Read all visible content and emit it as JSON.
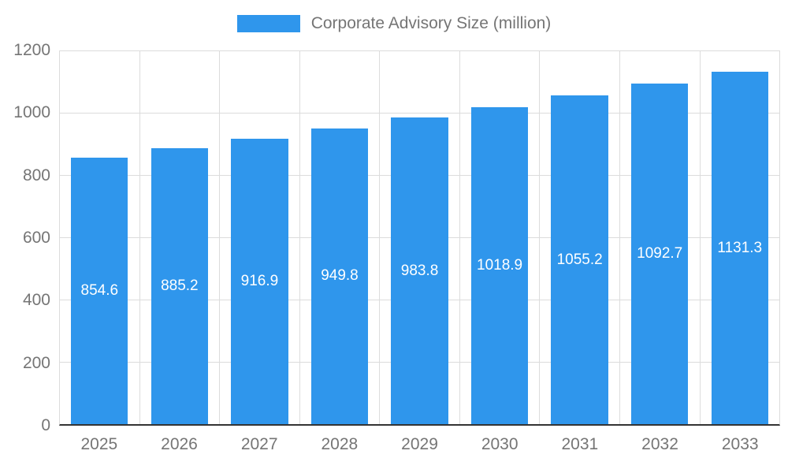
{
  "chart_data": {
    "type": "bar",
    "title": "",
    "legend": {
      "label": "Corporate Advisory Size (million)",
      "position": "top"
    },
    "categories": [
      "2025",
      "2026",
      "2027",
      "2028",
      "2029",
      "2030",
      "2031",
      "2032",
      "2033"
    ],
    "series": [
      {
        "name": "Corporate Advisory Size (million)",
        "values": [
          854.6,
          885.2,
          916.9,
          949.8,
          983.8,
          1018.9,
          1055.2,
          1092.7,
          1131.3
        ]
      }
    ],
    "data_labels": [
      "854.6",
      "885.2",
      "916.9",
      "949.8",
      "983.8",
      "1018.9",
      "1055.2",
      "1092.7",
      "1131.3"
    ],
    "xlabel": "",
    "ylabel": "",
    "ylim": [
      0,
      1200
    ],
    "yticks": [
      0,
      200,
      400,
      600,
      800,
      1000,
      1200
    ],
    "grid": true,
    "colors": {
      "bar": "#2F96EC",
      "axis_text": "#757575",
      "gridline": "#dcdcdc",
      "value_label": "#ffffff",
      "baseline": "#333333"
    }
  }
}
